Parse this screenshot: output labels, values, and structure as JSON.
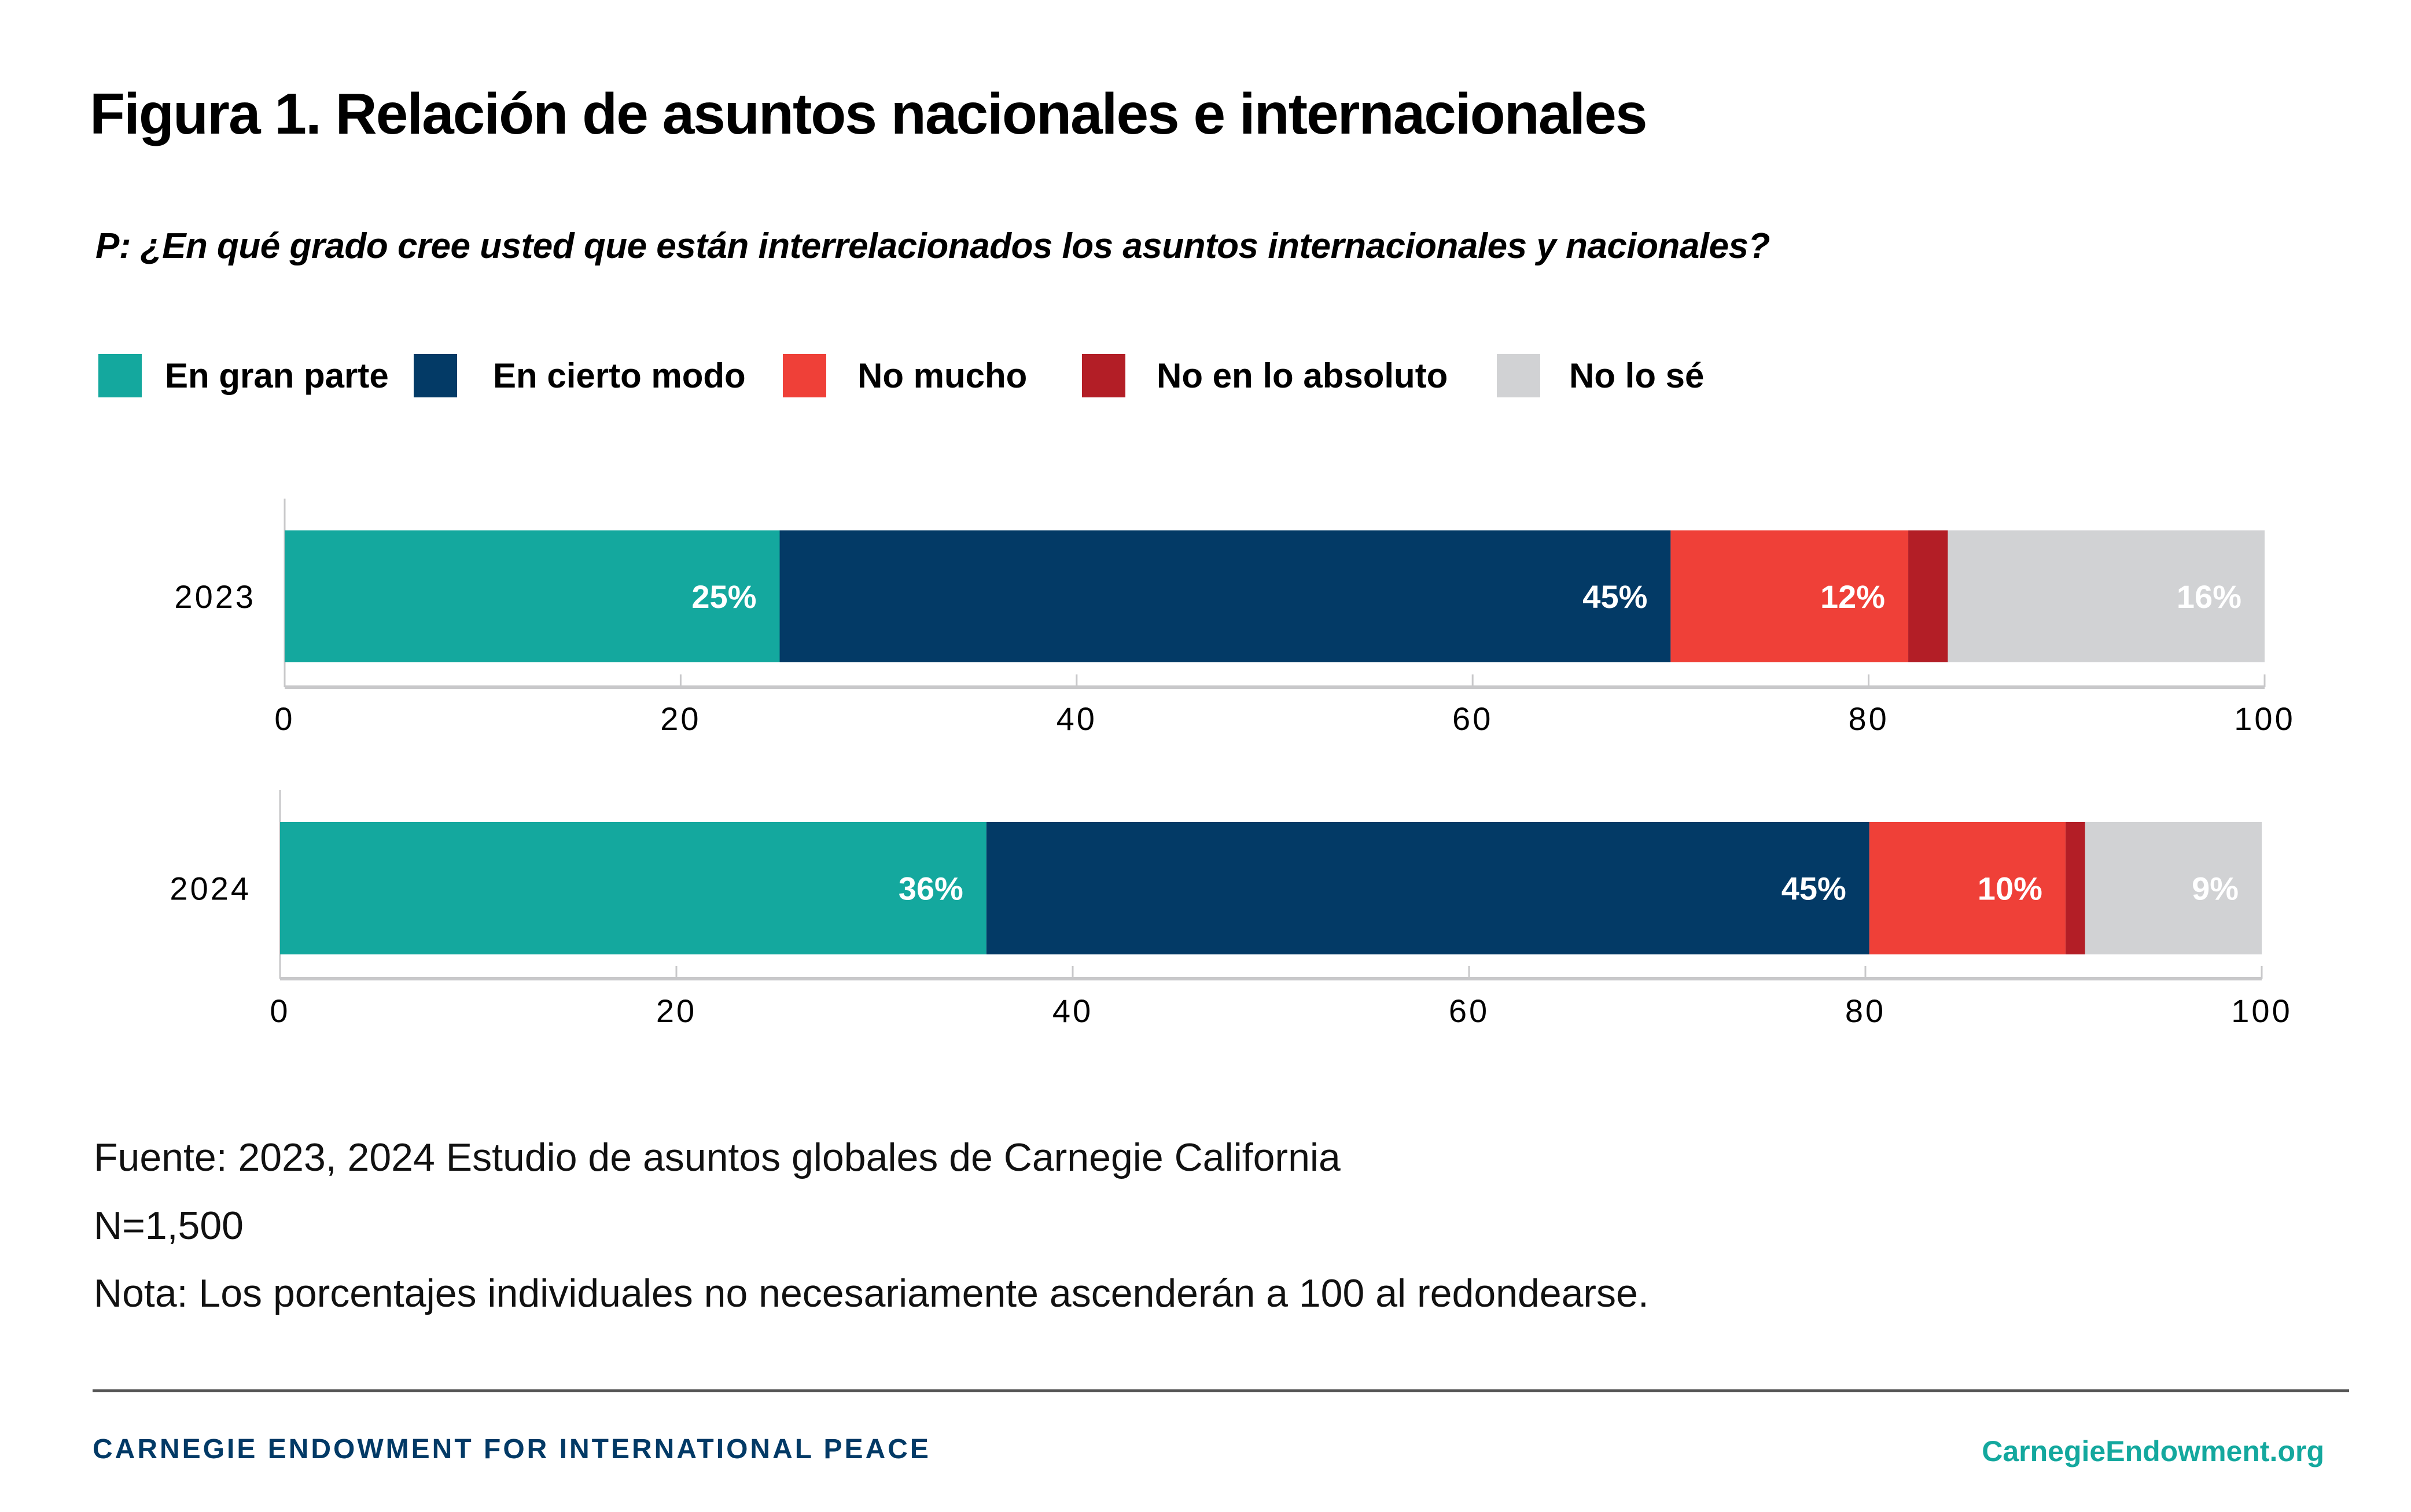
{
  "title": "Figura 1. Relación de asuntos nacionales e internacionales",
  "question": "P: ¿En qué grado cree usted que están interrelacionados los asuntos internacionales y nacionales?",
  "legend": [
    {
      "label": "En gran parte",
      "color": "#14a89e"
    },
    {
      "label": "En cierto modo",
      "color": "#033a66"
    },
    {
      "label": "No mucho",
      "color": "#ef4038"
    },
    {
      "label": "No en lo absoluto",
      "color": "#b31e26"
    },
    {
      "label": "No lo sé",
      "color": "#d1d2d4"
    }
  ],
  "chart_data": {
    "type": "bar",
    "orientation": "horizontal",
    "stacked": true,
    "title": "Figura 1. Relación de asuntos nacionales e internacionales",
    "subtitle": "P: ¿En qué grado cree usted que están interrelacionados los asuntos internacionales y nacionales?",
    "categories": [
      "2023",
      "2024"
    ],
    "series": [
      {
        "name": "En gran parte",
        "color": "#14a89e",
        "values": [
          25,
          36
        ],
        "labels": [
          "25%",
          "36%"
        ]
      },
      {
        "name": "En cierto modo",
        "color": "#033a66",
        "values": [
          45,
          45
        ],
        "labels": [
          "45%",
          "45%"
        ]
      },
      {
        "name": "No mucho",
        "color": "#ef4038",
        "values": [
          12,
          10
        ],
        "labels": [
          "12%",
          "10%"
        ]
      },
      {
        "name": "No en lo absoluto",
        "color": "#b31e26",
        "values": [
          2,
          1
        ],
        "labels": [
          "",
          ""
        ]
      },
      {
        "name": "No lo sé",
        "color": "#d1d2d4",
        "values": [
          16,
          9
        ],
        "labels": [
          "16%",
          "9%"
        ]
      }
    ],
    "xlim": [
      0,
      100
    ],
    "xticks": [
      "0",
      "20",
      "40",
      "60",
      "80",
      "100"
    ],
    "xlabel": "",
    "ylabel": "",
    "grid": false,
    "legend_position": "top-left"
  },
  "notes": {
    "source": " Fuente: 2023, 2024 Estudio de asuntos globales de Carnegie California",
    "n": "N=1,500",
    "note": "Nota: Los porcentajes individuales no necesariamente ascenderán a 100 al redondearse."
  },
  "footer": {
    "org": "CARNEGIE ENDOWMENT FOR INTERNATIONAL PEACE",
    "url": "CarnegieEndowment.org"
  }
}
